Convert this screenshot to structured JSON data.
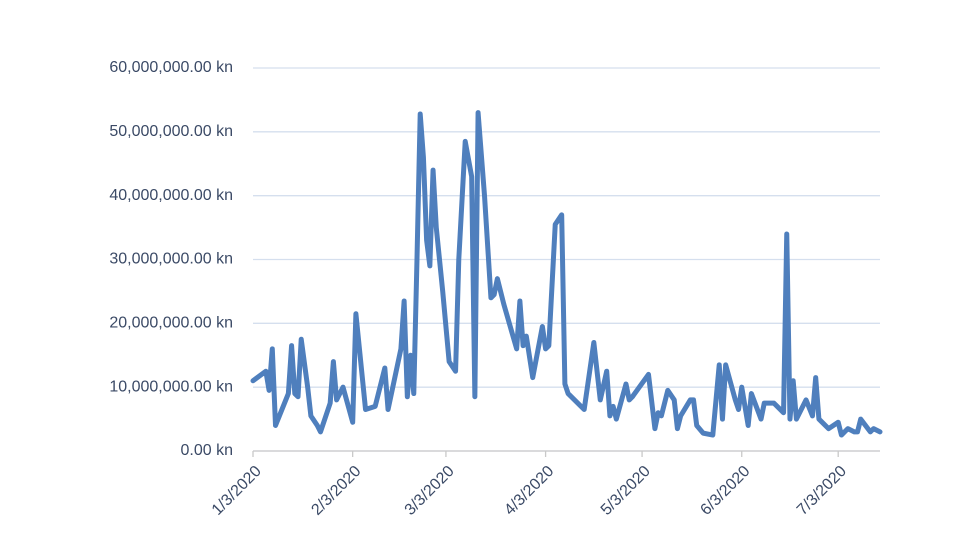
{
  "chart_data": {
    "type": "line",
    "color": "#4f7fbd",
    "grid": true,
    "x": [
      "2020-01-03",
      "2020-01-07",
      "2020-01-08",
      "2020-01-09",
      "2020-01-10",
      "2020-01-14",
      "2020-01-15",
      "2020-01-16",
      "2020-01-17",
      "2020-01-18",
      "2020-01-20",
      "2020-01-21",
      "2020-01-23",
      "2020-01-24",
      "2020-01-27",
      "2020-01-28",
      "2020-01-29",
      "2020-01-31",
      "2020-02-03",
      "2020-02-04",
      "2020-02-07",
      "2020-02-10",
      "2020-02-12",
      "2020-02-13",
      "2020-02-14",
      "2020-02-18",
      "2020-02-19",
      "2020-02-20",
      "2020-02-21",
      "2020-02-22",
      "2020-02-23",
      "2020-02-24",
      "2020-02-25",
      "2020-02-26",
      "2020-02-27",
      "2020-02-28",
      "2020-02-29",
      "2020-03-02",
      "2020-03-04",
      "2020-03-06",
      "2020-03-07",
      "2020-03-09",
      "2020-03-11",
      "2020-03-12",
      "2020-03-13",
      "2020-03-15",
      "2020-03-17",
      "2020-03-18",
      "2020-03-19",
      "2020-03-21",
      "2020-03-25",
      "2020-03-26",
      "2020-03-27",
      "2020-03-28",
      "2020-03-30",
      "2020-04-02",
      "2020-04-03",
      "2020-04-04",
      "2020-04-06",
      "2020-04-08",
      "2020-04-09",
      "2020-04-10",
      "2020-04-15",
      "2020-04-18",
      "2020-04-20",
      "2020-04-22",
      "2020-04-23",
      "2020-04-24",
      "2020-04-25",
      "2020-04-28",
      "2020-04-29",
      "2020-04-30",
      "2020-05-05",
      "2020-05-07",
      "2020-05-08",
      "2020-05-09",
      "2020-05-11",
      "2020-05-13",
      "2020-05-14",
      "2020-05-15",
      "2020-05-18",
      "2020-05-19",
      "2020-05-20",
      "2020-05-22",
      "2020-05-25",
      "2020-05-27",
      "2020-05-28",
      "2020-05-29",
      "2020-06-01",
      "2020-06-02",
      "2020-06-03",
      "2020-06-05",
      "2020-06-06",
      "2020-06-09",
      "2020-06-10",
      "2020-06-13",
      "2020-06-16",
      "2020-06-17",
      "2020-06-18",
      "2020-06-19",
      "2020-06-20",
      "2020-06-23",
      "2020-06-25",
      "2020-06-26",
      "2020-06-27",
      "2020-06-30",
      "2020-07-03",
      "2020-07-04",
      "2020-07-06",
      "2020-07-08",
      "2020-07-09",
      "2020-07-10",
      "2020-07-13",
      "2020-07-14",
      "2020-07-16"
    ],
    "values": [
      11000000,
      12500000,
      9500000,
      16000000,
      4000000,
      9000000,
      16500000,
      9000000,
      8500000,
      17500000,
      10000000,
      5500000,
      4000000,
      3000000,
      7500000,
      14000000,
      8000000,
      10000000,
      4500000,
      21500000,
      6500000,
      7000000,
      11000000,
      13000000,
      6500000,
      16000000,
      23500000,
      8500000,
      15000000,
      9000000,
      30000000,
      52800000,
      46000000,
      33000000,
      29000000,
      44000000,
      35000000,
      25000000,
      14000000,
      12500000,
      30000000,
      48500000,
      43000000,
      8500000,
      53000000,
      40000000,
      24000000,
      24500000,
      27000000,
      23000000,
      16000000,
      23500000,
      16500000,
      18000000,
      11500000,
      19500000,
      16000000,
      16500000,
      35500000,
      37000000,
      10500000,
      9000000,
      6500000,
      17000000,
      8000000,
      12500000,
      5500000,
      7000000,
      5000000,
      10500000,
      8000000,
      8500000,
      12000000,
      3500000,
      6000000,
      5500000,
      9500000,
      8000000,
      3500000,
      5500000,
      8000000,
      8000000,
      4000000,
      2800000,
      2500000,
      13500000,
      5000000,
      13500000,
      8000000,
      6500000,
      10000000,
      4000000,
      9000000,
      5000000,
      7500000,
      7500000,
      6000000,
      34000000,
      5000000,
      11000000,
      5000000,
      8000000,
      5500000,
      11500000,
      5000000,
      3500000,
      4500000,
      2500000,
      3500000,
      3000000,
      3000000,
      5000000,
      3000000,
      3500000,
      3000000
    ],
    "xlim": [
      "2020-01-03",
      "2020-07-16"
    ],
    "xticks": [
      {
        "value": "2020-01-03",
        "label": "1/3/2020"
      },
      {
        "value": "2020-02-03",
        "label": "2/3/2020"
      },
      {
        "value": "2020-03-03",
        "label": "3/3/2020"
      },
      {
        "value": "2020-04-03",
        "label": "4/3/2020"
      },
      {
        "value": "2020-05-03",
        "label": "5/3/2020"
      },
      {
        "value": "2020-06-03",
        "label": "6/3/2020"
      },
      {
        "value": "2020-07-03",
        "label": "7/3/2020"
      }
    ],
    "ylim": [
      0,
      60000000
    ],
    "yticks": [
      {
        "value": 0,
        "label": "0.00 kn"
      },
      {
        "value": 10000000,
        "label": "10,000,000.00 kn"
      },
      {
        "value": 20000000,
        "label": "20,000,000.00 kn"
      },
      {
        "value": 30000000,
        "label": "30,000,000.00 kn"
      },
      {
        "value": 40000000,
        "label": "40,000,000.00 kn"
      },
      {
        "value": 50000000,
        "label": "50,000,000.00 kn"
      },
      {
        "value": 60000000,
        "label": "60,000,000.00 kn"
      }
    ]
  }
}
